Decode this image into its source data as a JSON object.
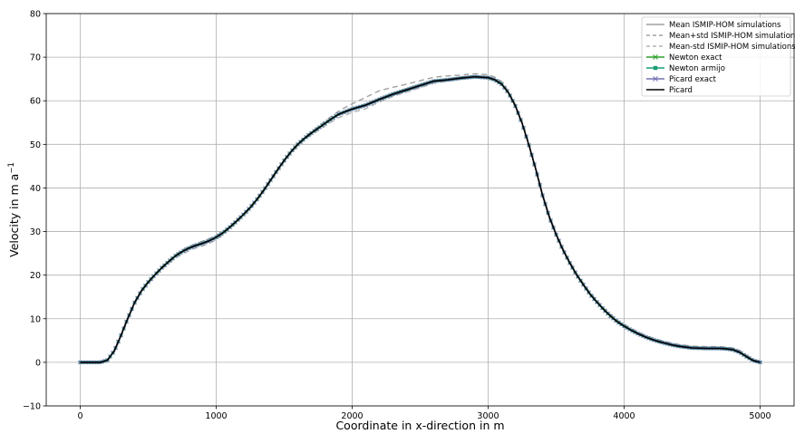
{
  "chart_data": {
    "type": "line",
    "title": "",
    "xlabel": "Coordinate in x-direction in m",
    "ylabel": "Velocity in m a",
    "ylabel_exponent": "−1",
    "xlim": [
      -250,
      5250
    ],
    "ylim": [
      -10,
      80
    ],
    "xticks": [
      0,
      1000,
      2000,
      3000,
      4000,
      5000
    ],
    "yticks": [
      -10,
      0,
      10,
      20,
      30,
      40,
      50,
      60,
      70,
      80
    ],
    "xtick_labels": [
      "0",
      "1000",
      "2000",
      "3000",
      "4000",
      "5000"
    ],
    "ytick_labels": [
      "−10",
      "0",
      "10",
      "20",
      "30",
      "40",
      "50",
      "60",
      "70",
      "80"
    ],
    "grid": true,
    "legend_position": "top-right",
    "x": [
      0,
      100,
      150,
      200,
      250,
      300,
      350,
      400,
      450,
      500,
      550,
      600,
      650,
      700,
      750,
      800,
      850,
      900,
      950,
      1000,
      1050,
      1100,
      1150,
      1200,
      1250,
      1300,
      1350,
      1400,
      1450,
      1500,
      1550,
      1600,
      1650,
      1700,
      1750,
      1800,
      1850,
      1900,
      1950,
      2000,
      2100,
      2200,
      2300,
      2400,
      2500,
      2600,
      2700,
      2800,
      2900,
      3000,
      3050,
      3100,
      3150,
      3200,
      3250,
      3300,
      3350,
      3400,
      3450,
      3500,
      3550,
      3600,
      3650,
      3700,
      3750,
      3800,
      3850,
      3900,
      3950,
      4000,
      4050,
      4100,
      4150,
      4200,
      4250,
      4300,
      4350,
      4400,
      4450,
      4500,
      4600,
      4700,
      4750,
      4800,
      4850,
      4900,
      4950,
      5000
    ],
    "series": [
      {
        "name": "Mean ISMIP-HOM simulations",
        "color": "#a0a0a0",
        "dash": "none",
        "marker": "none",
        "values": [
          0,
          0,
          0,
          0.4,
          2.5,
          6,
          10,
          13.6,
          16.3,
          18.3,
          20,
          21.6,
          23,
          24.3,
          25.3,
          26.1,
          26.7,
          27.2,
          27.8,
          28.6,
          29.6,
          30.9,
          32.3,
          33.8,
          35.4,
          37.3,
          39.4,
          41.7,
          44,
          46.2,
          48.2,
          49.9,
          51.3,
          52.5,
          53.6,
          54.7,
          55.8,
          56.8,
          57.5,
          58.2,
          59.2,
          60.6,
          61.8,
          62.8,
          63.8,
          64.7,
          65,
          65.4,
          65.7,
          65.5,
          65,
          64,
          62,
          59,
          55,
          50,
          44.5,
          38.5,
          33.5,
          29.5,
          26,
          23,
          20.3,
          18,
          15.8,
          14,
          12.3,
          10.8,
          9.5,
          8.5,
          7.6,
          6.8,
          6.1,
          5.5,
          5,
          4.6,
          4.2,
          3.9,
          3.7,
          3.5,
          3.4,
          3.4,
          3.3,
          3.1,
          2.5,
          1.5,
          0.5,
          0
        ]
      },
      {
        "name": "Mean+std ISMIP-HOM simulations",
        "color": "#a0a0a0",
        "dash": "6,4",
        "marker": "none",
        "values": [
          0,
          0,
          0,
          0.6,
          2.8,
          6.3,
          10.3,
          13.9,
          16.6,
          18.6,
          20.3,
          21.9,
          23.3,
          24.7,
          25.8,
          26.6,
          27.2,
          27.8,
          28.4,
          29.1,
          30,
          31.2,
          32.6,
          34.1,
          35.7,
          37.6,
          39.7,
          42,
          44.3,
          46.5,
          48.5,
          50.2,
          51.6,
          52.9,
          54.1,
          55.3,
          56.5,
          57.6,
          58.5,
          59.3,
          60.8,
          62.3,
          63.1,
          63.8,
          64.6,
          65.4,
          65.7,
          65.9,
          66.2,
          66,
          65.4,
          64.4,
          62.2,
          59.2,
          55.2,
          50.2,
          44.7,
          38.7,
          33.7,
          29.7,
          26.2,
          23.2,
          20.5,
          18.2,
          16,
          14.2,
          12.5,
          11,
          9.7,
          8.7,
          7.8,
          7,
          6.3,
          5.7,
          5.2,
          4.8,
          4.4,
          4.1,
          3.9,
          3.7,
          3.6,
          3.6,
          3.5,
          3.3,
          2.7,
          1.7,
          0.6,
          0
        ]
      },
      {
        "name": "Mean-std ISMIP-HOM simulations",
        "color": "#b4b4b4",
        "dash": "6,4",
        "marker": "none",
        "values": [
          0,
          0,
          0,
          0.2,
          2.2,
          5.7,
          9.7,
          13.3,
          16,
          18,
          19.7,
          21.3,
          22.7,
          23.9,
          24.8,
          25.6,
          26.2,
          26.7,
          27.3,
          28.1,
          29.2,
          30.6,
          32,
          33.5,
          35.1,
          37,
          39.1,
          41.4,
          43.7,
          45.9,
          47.9,
          49.6,
          51,
          52.2,
          53.2,
          54.2,
          55.2,
          56.1,
          56.7,
          57.3,
          58.2,
          59.7,
          61,
          62,
          63,
          64,
          64.5,
          65,
          65.3,
          65.1,
          64.6,
          63.6,
          61.8,
          58.8,
          54.8,
          49.8,
          44.3,
          38.3,
          33.3,
          29.3,
          25.8,
          22.8,
          20.1,
          17.8,
          15.6,
          13.8,
          12.1,
          10.6,
          9.3,
          8.3,
          7.4,
          6.6,
          5.9,
          5.3,
          4.8,
          4.4,
          4,
          3.7,
          3.5,
          3.3,
          3.2,
          3.2,
          3.1,
          2.9,
          2.3,
          1.3,
          0.4,
          0
        ]
      },
      {
        "name": "Newton exact",
        "color": "#2ca02c",
        "dash": "none",
        "marker": "x",
        "values": null
      },
      {
        "name": "Newton armijo",
        "color": "#1a9e77",
        "dash": "none",
        "marker": "square",
        "values": null
      },
      {
        "name": "Picard exact",
        "color": "#7570b3",
        "dash": "none",
        "marker": "x",
        "values": null
      },
      {
        "name": "Picard",
        "color": "#000000",
        "dash": "none",
        "marker": "none",
        "values": null
      }
    ],
    "solution_values": [
      0,
      0,
      0,
      0.5,
      2.6,
      6.2,
      10.1,
      13.7,
      16.4,
      18.4,
      20.1,
      21.7,
      23.1,
      24.4,
      25.4,
      26.2,
      26.8,
      27.3,
      27.9,
      28.7,
      29.7,
      31,
      32.4,
      33.9,
      35.5,
      37.4,
      39.5,
      41.8,
      44.1,
      46.3,
      48.3,
      50,
      51.4,
      52.6,
      53.7,
      54.8,
      55.9,
      56.9,
      57.5,
      58.1,
      59,
      60.3,
      61.5,
      62.5,
      63.5,
      64.5,
      64.8,
      65.2,
      65.5,
      65.3,
      64.8,
      63.8,
      61.8,
      58.8,
      54.8,
      49.8,
      44.3,
      38.3,
      33.3,
      29.3,
      25.8,
      22.8,
      20.1,
      17.8,
      15.6,
      13.8,
      12.1,
      10.6,
      9.3,
      8.3,
      7.4,
      6.6,
      5.9,
      5.3,
      4.8,
      4.4,
      4,
      3.7,
      3.5,
      3.3,
      3.2,
      3.2,
      3.1,
      2.9,
      2.3,
      1.3,
      0.4,
      0
    ]
  }
}
